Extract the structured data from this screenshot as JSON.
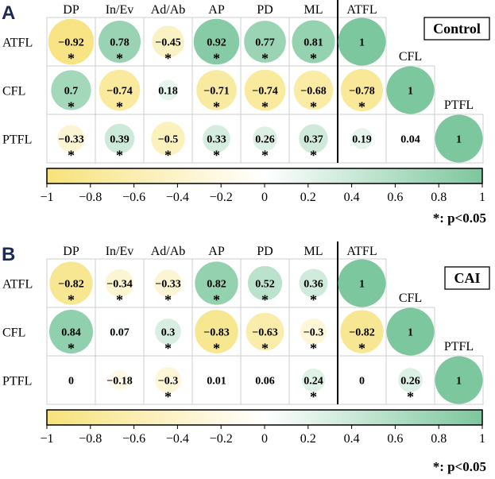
{
  "colors": {
    "negative": "#f7e27a",
    "neutral": "#ffffff",
    "positive": "#7cc79e"
  },
  "panels": [
    {
      "letter": "A",
      "group": "Control"
    },
    {
      "letter": "B",
      "group": "CAI"
    }
  ],
  "significance_note": "*: p<0.05",
  "chart_data": [
    {
      "type": "heatmap",
      "title": "Control",
      "panel": "A",
      "columns": [
        "DP",
        "In/Ev",
        "Ad/Ab",
        "AP",
        "PD",
        "ML",
        "ATFL"
      ],
      "rows": [
        "ATFL",
        "CFL",
        "PTFL"
      ],
      "diagonal_labels": [
        "CFL",
        "PTFL"
      ],
      "values": [
        [
          -0.92,
          0.78,
          -0.45,
          0.92,
          0.77,
          0.81,
          1
        ],
        [
          0.7,
          -0.74,
          0.18,
          -0.71,
          -0.74,
          -0.68,
          -0.78,
          1
        ],
        [
          -0.33,
          0.39,
          -0.5,
          0.33,
          0.26,
          0.37,
          0.19,
          0.04,
          1
        ]
      ],
      "significant": [
        [
          true,
          true,
          true,
          true,
          true,
          true,
          false
        ],
        [
          true,
          true,
          false,
          true,
          true,
          true,
          true,
          false
        ],
        [
          true,
          true,
          true,
          true,
          true,
          true,
          false,
          false,
          false
        ]
      ],
      "colorbar": {
        "range": [
          -1,
          1
        ],
        "ticks": [
          "−1",
          "−0.8",
          "−0.6",
          "−0.4",
          "−0.2",
          "0",
          "0.2",
          "0.4",
          "0.6",
          "0.8",
          "1"
        ]
      }
    },
    {
      "type": "heatmap",
      "title": "CAI",
      "panel": "B",
      "columns": [
        "DP",
        "In/Ev",
        "Ad/Ab",
        "AP",
        "PD",
        "ML",
        "ATFL"
      ],
      "rows": [
        "ATFL",
        "CFL",
        "PTFL"
      ],
      "diagonal_labels": [
        "CFL",
        "PTFL"
      ],
      "values": [
        [
          -0.82,
          -0.34,
          -0.33,
          0.82,
          0.52,
          0.36,
          1
        ],
        [
          0.84,
          0.07,
          0.3,
          -0.83,
          -0.63,
          -0.3,
          -0.82,
          1
        ],
        [
          0,
          -0.18,
          -0.3,
          0.01,
          0.06,
          0.24,
          0,
          0.26,
          1
        ]
      ],
      "significant": [
        [
          true,
          true,
          true,
          true,
          true,
          true,
          false
        ],
        [
          true,
          false,
          true,
          true,
          true,
          true,
          true,
          false
        ],
        [
          false,
          false,
          true,
          false,
          false,
          true,
          false,
          true,
          false
        ]
      ],
      "colorbar": {
        "range": [
          -1,
          1
        ],
        "ticks": [
          "−1",
          "−0.8",
          "−0.6",
          "−0.4",
          "−0.2",
          "0",
          "0.2",
          "0.4",
          "0.6",
          "0.8",
          "1"
        ]
      }
    }
  ]
}
